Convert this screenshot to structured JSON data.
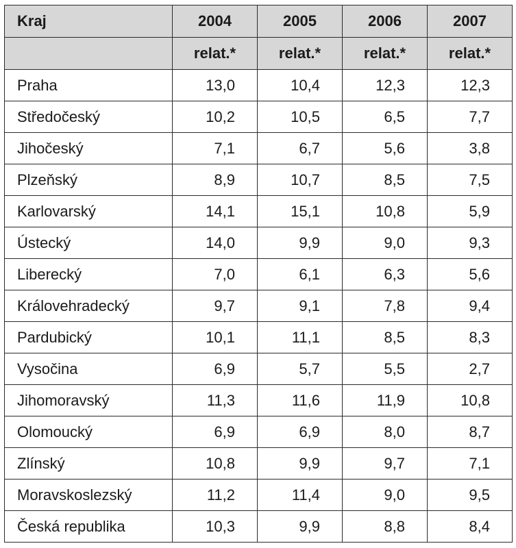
{
  "chart_data": {
    "type": "table",
    "header": {
      "region_label": "Kraj",
      "years": [
        "2004",
        "2005",
        "2006",
        "2007"
      ],
      "unit_label": "relat.*"
    },
    "rows": [
      {
        "region": "Praha",
        "values": [
          "13,0",
          "10,4",
          "12,3",
          "12,3"
        ]
      },
      {
        "region": "Středočeský",
        "values": [
          "10,2",
          "10,5",
          "6,5",
          "7,7"
        ]
      },
      {
        "region": "Jihočeský",
        "values": [
          "7,1",
          "6,7",
          "5,6",
          "3,8"
        ]
      },
      {
        "region": "Plzeňský",
        "values": [
          "8,9",
          "10,7",
          "8,5",
          "7,5"
        ]
      },
      {
        "region": "Karlovarský",
        "values": [
          "14,1",
          "15,1",
          "10,8",
          "5,9"
        ]
      },
      {
        "region": "Ústecký",
        "values": [
          "14,0",
          "9,9",
          "9,0",
          "9,3"
        ]
      },
      {
        "region": "Liberecký",
        "values": [
          "7,0",
          "6,1",
          "6,3",
          "5,6"
        ]
      },
      {
        "region": "Královehradecký",
        "values": [
          "9,7",
          "9,1",
          "7,8",
          "9,4"
        ]
      },
      {
        "region": "Pardubický",
        "values": [
          "10,1",
          "11,1",
          "8,5",
          "8,3"
        ]
      },
      {
        "region": "Vysočina",
        "values": [
          "6,9",
          "5,7",
          "5,5",
          "2,7"
        ]
      },
      {
        "region": "Jihomoravský",
        "values": [
          "11,3",
          "11,6",
          "11,9",
          "10,8"
        ]
      },
      {
        "region": "Olomoucký",
        "values": [
          "6,9",
          "6,9",
          "8,0",
          "8,7"
        ]
      },
      {
        "region": "Zlínský",
        "values": [
          "10,8",
          "9,9",
          "9,7",
          "7,1"
        ]
      },
      {
        "region": "Moravskoslezský",
        "values": [
          "11,2",
          "11,4",
          "9,0",
          "9,5"
        ]
      },
      {
        "region": "Česká republika",
        "values": [
          "10,3",
          "9,9",
          "8,8",
          "8,4"
        ]
      }
    ]
  },
  "colors": {
    "header_background": "#d7d7d7",
    "grid_line": "#2a2a2a",
    "text": "#1a1a1a"
  }
}
